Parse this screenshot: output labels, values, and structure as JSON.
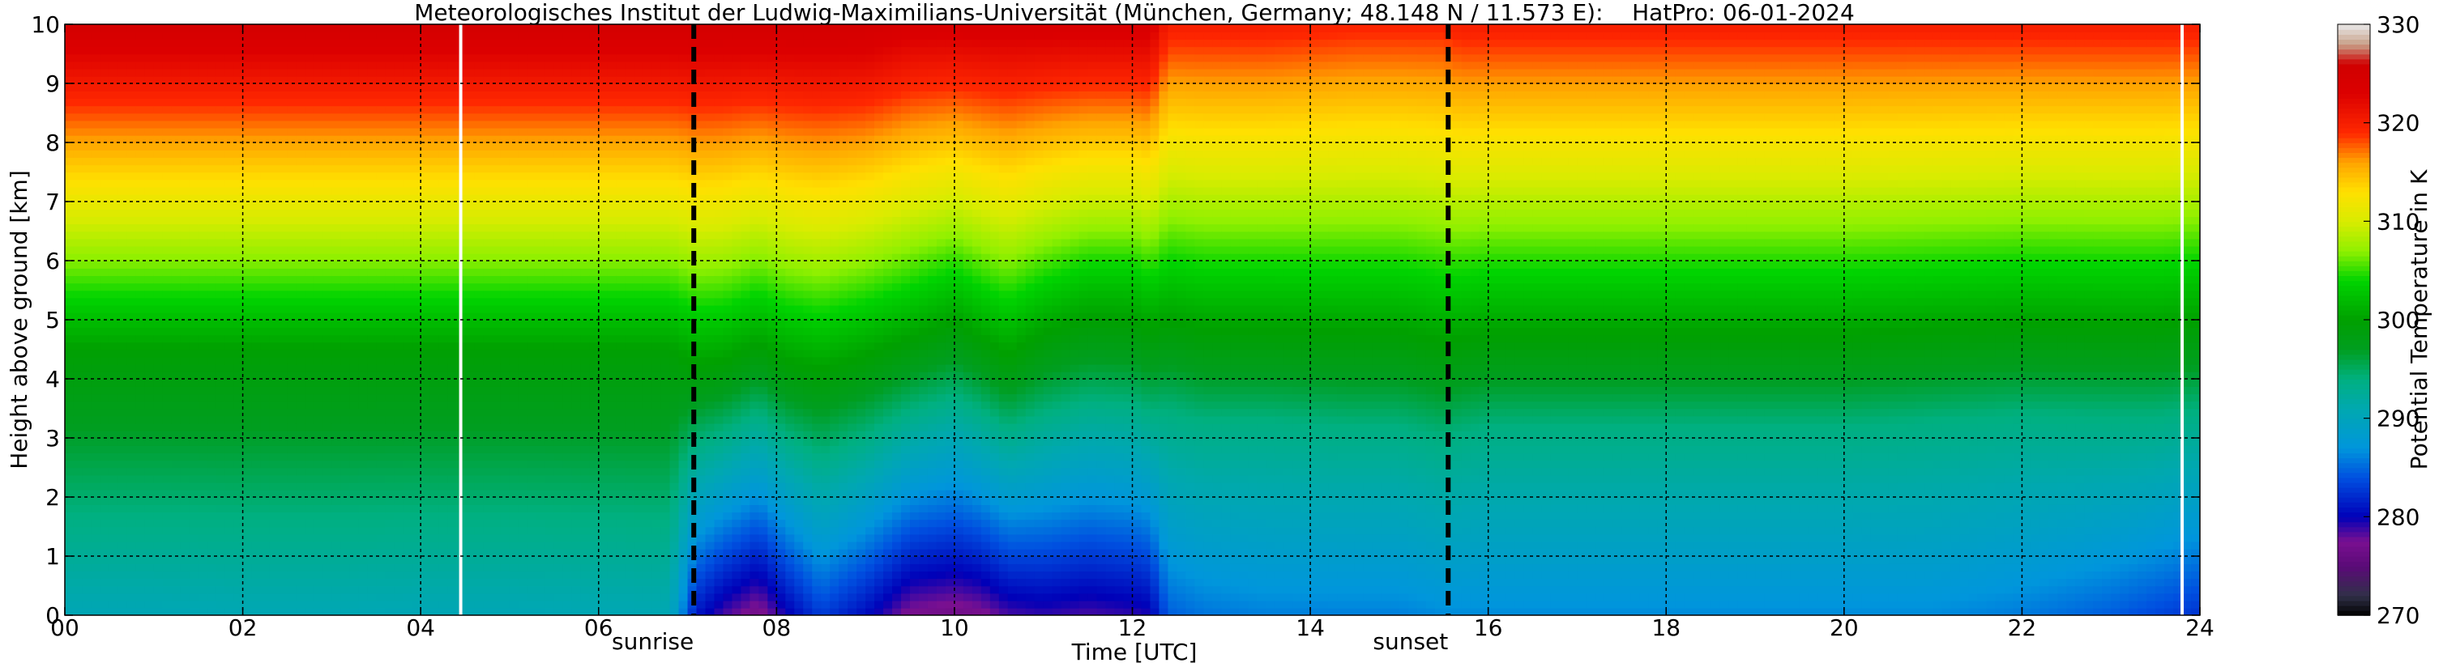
{
  "chart_data": {
    "type": "heatmap",
    "title": "Meteorologisches Institut der Ludwig-Maximilians-Universität (München, Germany; 48.148 N / 11.573 E):    HatPro: 06-01-2024",
    "xlabel": "Time [UTC]",
    "ylabel": "Height above ground [km]",
    "colorbar_label": "Potential Temperature in K",
    "xlim": [
      0,
      24
    ],
    "ylim": [
      0,
      10
    ],
    "clim": [
      270,
      330
    ],
    "x_ticks": [
      0,
      2,
      4,
      6,
      8,
      10,
      12,
      14,
      16,
      18,
      20,
      22,
      24
    ],
    "x_tick_labels": [
      "00",
      "02",
      "04",
      "06",
      "08",
      "10",
      "12",
      "14",
      "16",
      "18",
      "20",
      "22",
      "24"
    ],
    "y_ticks": [
      0,
      1,
      2,
      3,
      4,
      5,
      6,
      7,
      8,
      9,
      10
    ],
    "y_tick_labels": [
      "0",
      "1",
      "2",
      "3",
      "4",
      "5",
      "6",
      "7",
      "8",
      "9",
      "10"
    ],
    "colorbar_ticks": [
      270,
      280,
      290,
      300,
      310,
      320,
      330
    ],
    "colorbar_tick_labels": [
      "270",
      "280",
      "290",
      "300",
      "310",
      "320",
      "330"
    ],
    "grid": true,
    "events": [
      {
        "label": "sunrise",
        "time": 7.07
      },
      {
        "label": "sunset",
        "time": 15.55
      }
    ],
    "data_gaps": [
      4.45,
      23.8
    ],
    "times": [
      0,
      1,
      2,
      3,
      4,
      5,
      6,
      6.8,
      7.1,
      7.4,
      7.8,
      8.1,
      8.5,
      9,
      9.5,
      10,
      10.3,
      10.6,
      11,
      11.5,
      12,
      12.2,
      12.4,
      12.8,
      13.5,
      14.5,
      15,
      15.5,
      15.7,
      16,
      17,
      18,
      19,
      20,
      21,
      22,
      23,
      23.5,
      24
    ],
    "heights": [
      0,
      0.5,
      1,
      1.5,
      2,
      2.5,
      3,
      3.5,
      4,
      4.5,
      5,
      5.5,
      6,
      6.5,
      7,
      7.5,
      8,
      8.5,
      9,
      9.5,
      10
    ],
    "colormap": [
      {
        "value": 270,
        "color": "#000000"
      },
      {
        "value": 272,
        "color": "#303048"
      },
      {
        "value": 275,
        "color": "#5a0a78"
      },
      {
        "value": 277.5,
        "color": "#7a1090"
      },
      {
        "value": 280,
        "color": "#0000b8"
      },
      {
        "value": 284,
        "color": "#0050e0"
      },
      {
        "value": 287,
        "color": "#0096dc"
      },
      {
        "value": 291,
        "color": "#00a8b0"
      },
      {
        "value": 294,
        "color": "#00b080"
      },
      {
        "value": 297,
        "color": "#009e20"
      },
      {
        "value": 300,
        "color": "#00a000"
      },
      {
        "value": 304,
        "color": "#00d400"
      },
      {
        "value": 307,
        "color": "#90f000"
      },
      {
        "value": 310,
        "color": "#d8ec00"
      },
      {
        "value": 313,
        "color": "#ffe000"
      },
      {
        "value": 316,
        "color": "#ffa400"
      },
      {
        "value": 319,
        "color": "#ff2800"
      },
      {
        "value": 323,
        "color": "#dc0000"
      },
      {
        "value": 326,
        "color": "#d00000"
      },
      {
        "value": 328,
        "color": "#c8a088"
      },
      {
        "value": 330,
        "color": "#e8e8e8"
      }
    ],
    "surface_theta": [
      290.5,
      290.5,
      290.6,
      290.6,
      290.5,
      290.5,
      290.6,
      290.7,
      281.0,
      278.5,
      276.5,
      279.5,
      283.0,
      280.5,
      277.0,
      276.5,
      277.0,
      278.5,
      279.0,
      278.5,
      279.0,
      279.5,
      284.5,
      285.5,
      286.0,
      286.0,
      286.0,
      286.5,
      286.5,
      286.5,
      286.5,
      286.5,
      286.5,
      286.5,
      286.5,
      285.8,
      284.5,
      283.5,
      282.5
    ],
    "surface_layer_top_km": [
      4.4,
      4.4,
      4.4,
      4.4,
      4.4,
      4.4,
      4.4,
      4.4,
      3.8,
      4.3,
      4.9,
      4.2,
      3.7,
      4.4,
      5.0,
      5.4,
      4.9,
      4.3,
      4.9,
      5.5,
      5.6,
      5.2,
      3.6,
      3.3,
      3.3,
      3.2,
      3.2,
      3.0,
      3.1,
      3.2,
      3.2,
      3.2,
      3.2,
      3.2,
      3.3,
      3.4,
      3.5,
      3.5,
      3.6
    ],
    "theta_at_surface_layer_top": [
      299.5,
      299.5,
      299.5,
      299.5,
      299.5,
      299.5,
      299.5,
      299.5,
      298.0,
      300.0,
      301.5,
      299.5,
      298.0,
      300.0,
      301.5,
      302.0,
      301.0,
      299.5,
      300.5,
      302.0,
      302.5,
      301.5,
      294.5,
      294.0,
      294.0,
      294.0,
      294.0,
      294.0,
      294.0,
      294.0,
      294.0,
      294.0,
      294.0,
      294.0,
      294.0,
      294.0,
      294.5,
      294.5,
      294.5
    ],
    "upper_lapse_rate_K_per_km": [
      4.6,
      4.6,
      4.6,
      4.6,
      4.6,
      4.6,
      4.6,
      4.6,
      4.7,
      4.4,
      3.8,
      4.5,
      4.5,
      4.2,
      3.8,
      3.6,
      4.2,
      4.5,
      3.9,
      3.5,
      3.3,
      3.5,
      3.7,
      3.7,
      3.6,
      3.6,
      3.6,
      3.8,
      3.8,
      3.7,
      3.7,
      3.7,
      3.7,
      3.7,
      3.7,
      3.7,
      3.7,
      3.7,
      3.6
    ],
    "theta_top_of_profile": [
      325,
      325,
      325,
      325,
      325,
      325,
      325,
      325,
      325,
      325,
      325,
      325,
      325,
      325,
      324,
      324,
      324,
      324,
      324,
      324,
      324,
      324,
      320,
      320,
      320,
      319.5,
      319.5,
      319.5,
      320,
      320,
      320,
      320,
      320,
      320,
      320,
      320,
      320,
      320,
      320
    ]
  }
}
